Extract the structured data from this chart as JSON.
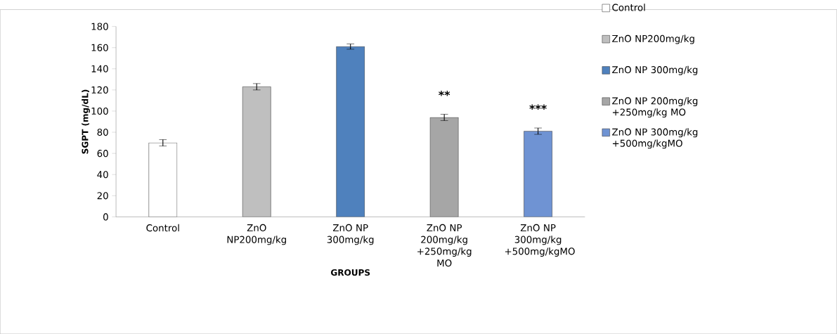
{
  "chart_data": {
    "type": "bar",
    "xlabel": "GROUPS",
    "ylabel": "SGPT (mg/dL)",
    "categories": [
      "Control",
      "ZnO NP200mg/kg",
      "ZnO NP 300mg/kg",
      "ZnO NP 200mg/kg +250mg/kg MO",
      "ZnO NP 300mg/kg +500mg/kgMO"
    ],
    "series": [
      {
        "name": "Control",
        "color": "#ffffff",
        "values": [
          70,
          null,
          null,
          null,
          null
        ],
        "errors": [
          3,
          null,
          null,
          null,
          null
        ]
      },
      {
        "name": "ZnO NP200mg/kg",
        "color": "#bfbfbf",
        "values": [
          null,
          123,
          null,
          null,
          null
        ],
        "errors": [
          null,
          3,
          null,
          null,
          null
        ]
      },
      {
        "name": "ZnO NP 300mg/kg",
        "color": "#4f81bd",
        "values": [
          null,
          null,
          161,
          null,
          null
        ],
        "errors": [
          null,
          null,
          2.5,
          null,
          null
        ]
      },
      {
        "name": "ZnO NP 200mg/kg +250mg/kg MO",
        "color": "#a6a6a6",
        "values": [
          null,
          null,
          null,
          94,
          null
        ],
        "errors": [
          null,
          null,
          null,
          3,
          null
        ]
      },
      {
        "name": "ZnO NP 300mg/kg +500mg/kgMO",
        "color": "#6f93d3",
        "values": [
          null,
          null,
          null,
          null,
          81
        ],
        "errors": [
          null,
          null,
          null,
          null,
          3
        ]
      }
    ],
    "annotations": [
      {
        "text": "**",
        "x": "ZnO NP 200mg/kg +250mg/kg MO",
        "y": 94
      },
      {
        "text": "***",
        "x": "ZnO NP 300mg/kg +500mg/kgMO",
        "y": 81
      }
    ],
    "ylim": [
      0,
      180
    ],
    "yticks": [
      0,
      20,
      40,
      60,
      80,
      100,
      120,
      140,
      160,
      180
    ],
    "legend": "right",
    "grid": false
  }
}
